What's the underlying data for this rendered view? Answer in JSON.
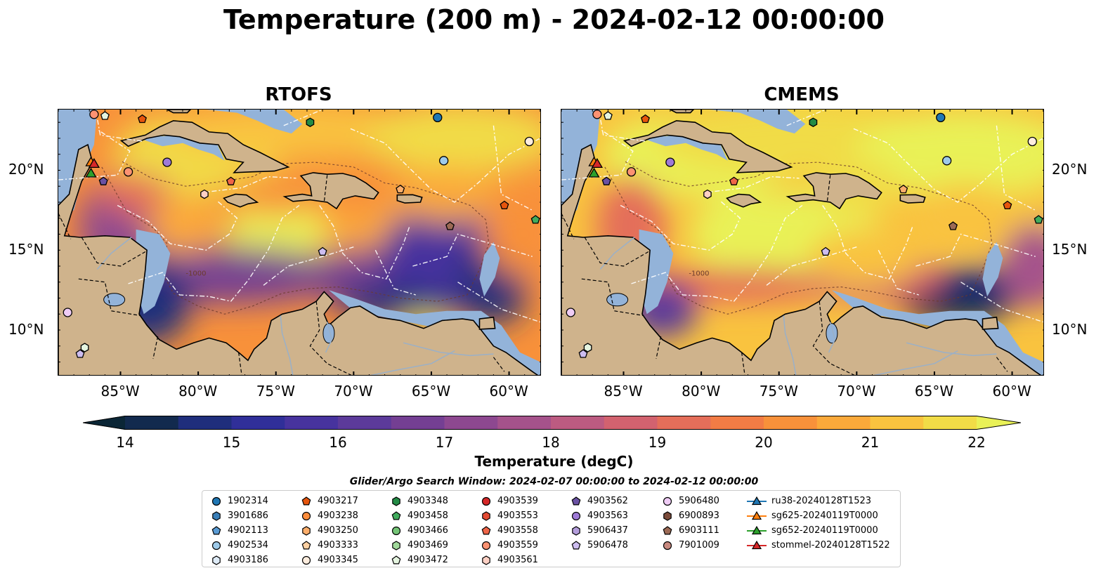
{
  "title": "Temperature (200 m) - 2024-02-12 00:00:00",
  "panels": [
    {
      "title": "RTOFS"
    },
    {
      "title": "CMEMS"
    }
  ],
  "axes": {
    "lon_ticks": [
      "85°W",
      "80°W",
      "75°W",
      "70°W",
      "65°W",
      "60°W"
    ],
    "lat_ticks": [
      "20°N",
      "15°N",
      "10°N"
    ]
  },
  "contour_label": "-1000",
  "colorbar": {
    "label": "Temperature (degC)",
    "ticks": [
      "14",
      "15",
      "16",
      "17",
      "18",
      "19",
      "20",
      "21",
      "22"
    ],
    "colors": [
      "#0b2636",
      "#122a4e",
      "#1f2e7c",
      "#302f99",
      "#47339e",
      "#5c3a9a",
      "#743f93",
      "#8d4890",
      "#a5528b",
      "#bc5b81",
      "#d2626f",
      "#e46e5a",
      "#f27c45",
      "#f8913a",
      "#fba93a",
      "#f9c33f",
      "#f1dc47",
      "#e9f157"
    ]
  },
  "search_window": "Glider/Argo Search Window: 2024-02-07 00:00:00 to 2024-02-12 00:00:00",
  "legend": [
    [
      {
        "label": "1902314",
        "marker": "circle",
        "color": "#1f77b4"
      },
      {
        "label": "3901686",
        "marker": "hexagon",
        "color": "#3a7fb8"
      },
      {
        "label": "4902113",
        "marker": "pentagon",
        "color": "#5a9bd4"
      },
      {
        "label": "4902534",
        "marker": "circle",
        "color": "#9ecae9"
      },
      {
        "label": "4903186",
        "marker": "hexagon",
        "color": "#deebf7"
      }
    ],
    [
      {
        "label": "4903217",
        "marker": "pentagon",
        "color": "#e6550d"
      },
      {
        "label": "4903238",
        "marker": "circle",
        "color": "#fd8d3c"
      },
      {
        "label": "4903250",
        "marker": "hexagon",
        "color": "#fdae6b"
      },
      {
        "label": "4903333",
        "marker": "pentagon",
        "color": "#fdd0a2"
      },
      {
        "label": "4903345",
        "marker": "circle",
        "color": "#feedde"
      }
    ],
    [
      {
        "label": "4903348",
        "marker": "hexagon",
        "color": "#238b45"
      },
      {
        "label": "4903458",
        "marker": "pentagon",
        "color": "#41ab5d"
      },
      {
        "label": "4903466",
        "marker": "circle",
        "color": "#74c476"
      },
      {
        "label": "4903469",
        "marker": "hexagon",
        "color": "#a1d99b"
      },
      {
        "label": "4903472",
        "marker": "pentagon",
        "color": "#e5f5e0"
      }
    ],
    [
      {
        "label": "4903539",
        "marker": "circle",
        "color": "#d62728"
      },
      {
        "label": "4903553",
        "marker": "hexagon",
        "color": "#e34a33"
      },
      {
        "label": "4903558",
        "marker": "pentagon",
        "color": "#ef6548"
      },
      {
        "label": "4903559",
        "marker": "circle",
        "color": "#fc9272"
      },
      {
        "label": "4903561",
        "marker": "hexagon",
        "color": "#fdd0c4"
      }
    ],
    [
      {
        "label": "4903562",
        "marker": "pentagon",
        "color": "#6a51a3"
      },
      {
        "label": "4903563",
        "marker": "circle",
        "color": "#9e7ad6"
      },
      {
        "label": "5906437",
        "marker": "hexagon",
        "color": "#b39ddb"
      },
      {
        "label": "5906478",
        "marker": "pentagon",
        "color": "#cdbdf0"
      }
    ],
    [
      {
        "label": "5906480",
        "marker": "circle",
        "color": "#efccf5"
      },
      {
        "label": "6900893",
        "marker": "hexagon",
        "color": "#7b4b3a"
      },
      {
        "label": "6903111",
        "marker": "pentagon",
        "color": "#9c6a55"
      },
      {
        "label": "7901009",
        "marker": "circle",
        "color": "#c98a80"
      }
    ],
    [
      {
        "label": "ru38-20240128T1523",
        "marker": "triangle-line",
        "color": "#1f77b4"
      },
      {
        "label": "sg625-20240119T0000",
        "marker": "triangle-line",
        "color": "#ff7f0e"
      },
      {
        "label": "sg652-20240119T0000",
        "marker": "triangle-line",
        "color": "#2ca02c"
      },
      {
        "label": "stommel-20240128T1522",
        "marker": "triangle-line",
        "color": "#d62728"
      }
    ]
  ]
}
